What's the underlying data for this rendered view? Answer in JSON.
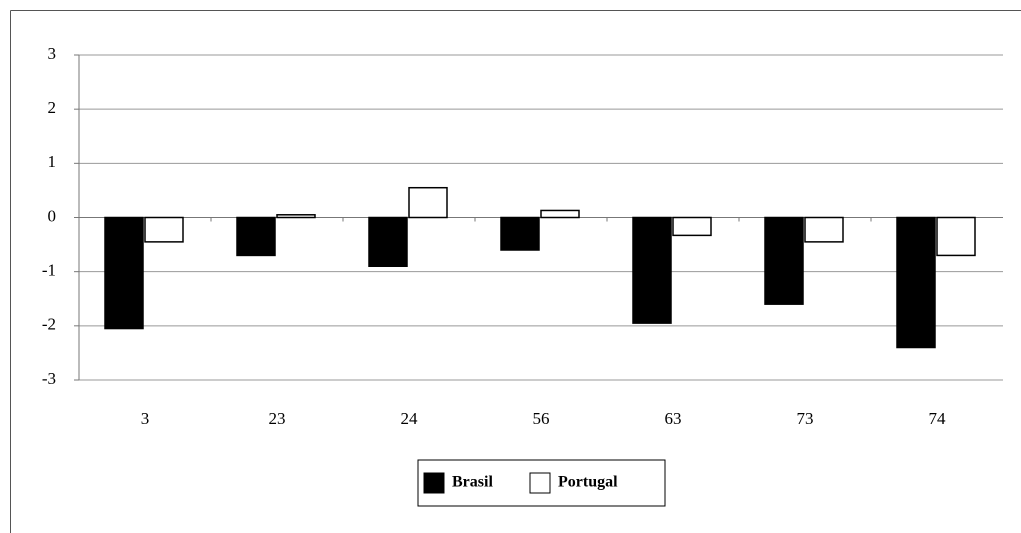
{
  "chart_data": {
    "type": "bar",
    "categories": [
      "3",
      "23",
      "24",
      "56",
      "63",
      "73",
      "74"
    ],
    "series": [
      {
        "name": "Brasil",
        "color": "#000000",
        "values": [
          -2.05,
          -0.7,
          -0.9,
          -0.6,
          -1.95,
          -1.6,
          -2.4
        ]
      },
      {
        "name": "Portugal",
        "color": "#ffffff",
        "values": [
          -0.45,
          0.05,
          0.55,
          0.13,
          -0.33,
          -0.45,
          -0.7
        ]
      }
    ],
    "ylim": [
      -3,
      3
    ],
    "yticks": [
      -3,
      -2,
      -1,
      0,
      1,
      2,
      3
    ],
    "grid": true,
    "legend": "bottom"
  }
}
